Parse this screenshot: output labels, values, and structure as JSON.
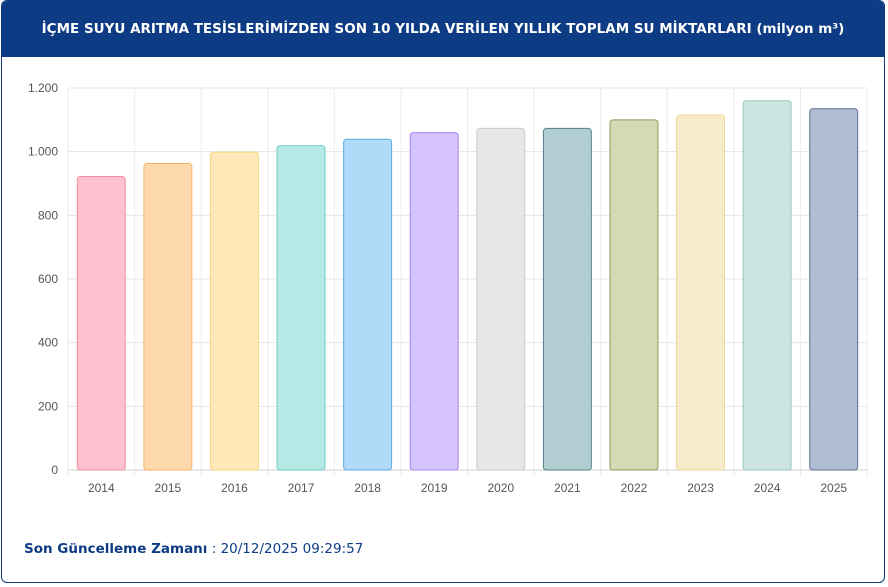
{
  "header": {
    "title": "İÇME SUYU ARITMA TESİSLERİMİZDEN SON 10 YILDA VERİLEN YILLIK TOPLAM SU MİKTARLARI (milyon m³)"
  },
  "footer": {
    "label": "Son Güncelleme Zamanı",
    "separator": " : ",
    "timestamp": "20/12/2025 09:29:57"
  },
  "chart_data": {
    "type": "bar",
    "categories": [
      "2014",
      "2015",
      "2016",
      "2017",
      "2018",
      "2019",
      "2020",
      "2021",
      "2022",
      "2023",
      "2024",
      "2025"
    ],
    "values": [
      922,
      963,
      998,
      1019,
      1039,
      1060,
      1073,
      1073,
      1100,
      1115,
      1160,
      1135
    ],
    "ylim": [
      0,
      1200
    ],
    "yticks": [
      0,
      200,
      400,
      600,
      800,
      1000,
      1200
    ],
    "ytick_labels": [
      "0",
      "200",
      "400",
      "600",
      "800",
      "1.000",
      "1.200"
    ],
    "grid": true,
    "colors": {
      "fills": [
        "#ffc0cf",
        "#ffd9ae",
        "#ffe9b9",
        "#b6e8e6",
        "#b0daf7",
        "#d5c3fd",
        "#e6e7e9",
        "#b1cdd2",
        "#d5dab4",
        "#f7ebca",
        "#cce5e0",
        "#b1bdd2"
      ],
      "strokes": [
        "#f58ea4",
        "#f6b26b",
        "#f8d57b",
        "#6fcfcb",
        "#57acdd",
        "#a985f4",
        "#c9cbcf",
        "#55808a",
        "#8f9a57",
        "#eed79a",
        "#93c9bd",
        "#5e6f90"
      ]
    }
  }
}
